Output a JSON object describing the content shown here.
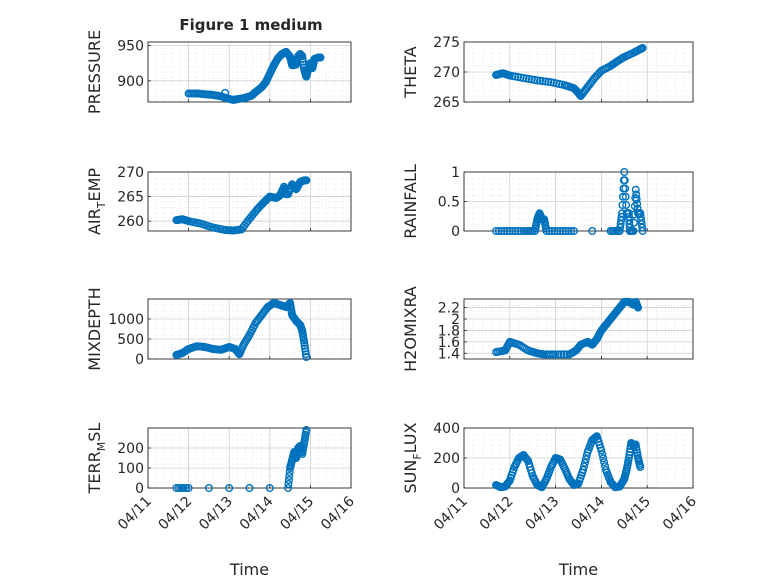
{
  "figure": {
    "title": "Figure 1 medium",
    "marker_color": "#0072BD"
  },
  "chart_data": [
    {
      "type": "scatter",
      "ylabel": "PRESSURE",
      "xlabel": "",
      "xlim": [
        "04/11",
        "04/16"
      ],
      "ylim": [
        870,
        955
      ],
      "yticks": [
        900,
        950
      ],
      "x_tick_labels": [
        "04/11",
        "04/12",
        "04/13",
        "04/14",
        "04/15",
        "04/16"
      ],
      "grid": "major+minor",
      "points": [
        [
          12.9,
          883
        ],
        [
          12.0,
          882
        ],
        [
          12.2,
          882
        ],
        [
          12.4,
          881
        ],
        [
          12.6,
          880
        ],
        [
          12.8,
          878
        ],
        [
          12.95,
          875
        ],
        [
          13.1,
          873
        ],
        [
          13.2,
          874
        ],
        [
          13.4,
          876
        ],
        [
          13.55,
          879
        ],
        [
          13.65,
          884
        ],
        [
          13.8,
          891
        ],
        [
          13.9,
          898
        ],
        [
          14.0,
          910
        ],
        [
          14.1,
          922
        ],
        [
          14.2,
          932
        ],
        [
          14.3,
          938
        ],
        [
          14.4,
          941
        ],
        [
          14.5,
          934
        ],
        [
          14.55,
          922
        ],
        [
          14.65,
          923
        ],
        [
          14.7,
          935
        ],
        [
          14.75,
          938
        ],
        [
          14.8,
          935
        ],
        [
          14.85,
          915
        ],
        [
          14.9,
          906
        ],
        [
          14.95,
          917
        ],
        [
          15.0,
          925
        ],
        [
          15.05,
          918
        ],
        [
          15.1,
          931
        ],
        [
          15.2,
          933
        ],
        [
          15.25,
          933
        ]
      ]
    },
    {
      "type": "scatter",
      "ylabel": "THETA",
      "xlabel": "",
      "xlim": [
        "04/11",
        "04/16"
      ],
      "ylim": [
        265,
        275
      ],
      "yticks": [
        265,
        270,
        275
      ],
      "x_tick_labels": [
        "04/11",
        "04/12",
        "04/13",
        "04/14",
        "04/15",
        "04/16"
      ],
      "grid": "major+minor",
      "points": [
        [
          11.7,
          269.5
        ],
        [
          11.85,
          269.8
        ],
        [
          12.0,
          269.4
        ],
        [
          12.3,
          269.0
        ],
        [
          12.6,
          268.6
        ],
        [
          12.9,
          268.3
        ],
        [
          13.2,
          267.8
        ],
        [
          13.4,
          267.3
        ],
        [
          13.5,
          266.5
        ],
        [
          13.55,
          266.0
        ],
        [
          13.7,
          267.5
        ],
        [
          13.85,
          269.0
        ],
        [
          14.0,
          270.2
        ],
        [
          14.2,
          271.0
        ],
        [
          14.35,
          271.8
        ],
        [
          14.5,
          272.5
        ],
        [
          14.7,
          273.2
        ],
        [
          14.85,
          273.8
        ],
        [
          14.9,
          274.0
        ]
      ]
    },
    {
      "type": "scatter",
      "ylabel": "AIR_TEMP",
      "xlabel": "",
      "xlim": [
        "04/11",
        "04/16"
      ],
      "ylim": [
        258,
        270
      ],
      "yticks": [
        260,
        265,
        270
      ],
      "x_tick_labels": [
        "04/11",
        "04/12",
        "04/13",
        "04/14",
        "04/15",
        "04/16"
      ],
      "grid": "major+minor",
      "points": [
        [
          11.7,
          260.2
        ],
        [
          11.85,
          260.4
        ],
        [
          12.0,
          260.0
        ],
        [
          12.3,
          259.5
        ],
        [
          12.6,
          258.7
        ],
        [
          12.9,
          258.2
        ],
        [
          13.1,
          258.1
        ],
        [
          13.3,
          258.3
        ],
        [
          13.5,
          260.5
        ],
        [
          13.7,
          262.5
        ],
        [
          13.85,
          263.8
        ],
        [
          14.0,
          265.0
        ],
        [
          14.15,
          264.7
        ],
        [
          14.25,
          265.2
        ],
        [
          14.35,
          267.0
        ],
        [
          14.4,
          265.5
        ],
        [
          14.45,
          265.5
        ],
        [
          14.55,
          267.5
        ],
        [
          14.65,
          266.5
        ],
        [
          14.75,
          268.0
        ],
        [
          14.85,
          268.3
        ],
        [
          14.9,
          268.3
        ]
      ]
    },
    {
      "type": "scatter",
      "ylabel": "RAINFALL",
      "xlabel": "",
      "xlim": [
        "04/11",
        "04/16"
      ],
      "ylim": [
        0,
        1
      ],
      "yticks": [
        0,
        0.5,
        1
      ],
      "x_tick_labels": [
        "04/11",
        "04/12",
        "04/13",
        "04/14",
        "04/15",
        "04/16"
      ],
      "grid": "major+minor",
      "points": [
        [
          11.7,
          0
        ],
        [
          12.0,
          0
        ],
        [
          12.3,
          0
        ],
        [
          12.55,
          0
        ],
        [
          12.6,
          0.2
        ],
        [
          12.65,
          0.3
        ],
        [
          12.7,
          0.2
        ],
        [
          12.75,
          0.2
        ],
        [
          12.8,
          0
        ],
        [
          13.1,
          0
        ],
        [
          13.4,
          0
        ],
        [
          13.8,
          0
        ],
        [
          14.2,
          0
        ],
        [
          14.4,
          0
        ],
        [
          14.45,
          0.3
        ],
        [
          14.5,
          1.0
        ],
        [
          14.55,
          0.3
        ],
        [
          14.6,
          0.3
        ],
        [
          14.62,
          0
        ],
        [
          14.7,
          0
        ],
        [
          14.75,
          0.7
        ],
        [
          14.8,
          0.3
        ],
        [
          14.85,
          0.3
        ],
        [
          14.9,
          0
        ]
      ]
    },
    {
      "type": "scatter",
      "ylabel": "MIXDEPTH",
      "xlabel": "",
      "xlim": [
        "04/11",
        "04/16"
      ],
      "ylim": [
        0,
        1500
      ],
      "yticks": [
        0,
        500,
        1000
      ],
      "x_tick_labels": [
        "04/11",
        "04/12",
        "04/13",
        "04/14",
        "04/15",
        "04/16"
      ],
      "grid": "major+minor",
      "points": [
        [
          11.7,
          100
        ],
        [
          11.85,
          150
        ],
        [
          12.0,
          250
        ],
        [
          12.2,
          320
        ],
        [
          12.4,
          300
        ],
        [
          12.6,
          250
        ],
        [
          12.8,
          230
        ],
        [
          13.0,
          300
        ],
        [
          13.15,
          250
        ],
        [
          13.25,
          120
        ],
        [
          13.35,
          350
        ],
        [
          13.5,
          600
        ],
        [
          13.65,
          900
        ],
        [
          13.8,
          1100
        ],
        [
          13.95,
          1300
        ],
        [
          14.1,
          1400
        ],
        [
          14.25,
          1350
        ],
        [
          14.4,
          1300
        ],
        [
          14.5,
          1400
        ],
        [
          14.55,
          1100
        ],
        [
          14.65,
          950
        ],
        [
          14.75,
          850
        ],
        [
          14.8,
          700
        ],
        [
          14.85,
          400
        ],
        [
          14.9,
          50
        ]
      ]
    },
    {
      "type": "scatter",
      "ylabel": "H2OMIXRA",
      "xlabel": "",
      "xlim": [
        "04/11",
        "04/16"
      ],
      "ylim": [
        1.3,
        2.35
      ],
      "yticks": [
        1.4,
        1.6,
        1.8,
        2.0,
        2.2
      ],
      "y_tick_labels": [
        "1.4",
        "1.6",
        "1.8",
        "2",
        "2.2"
      ],
      "x_tick_labels": [
        "04/11",
        "04/12",
        "04/13",
        "04/14",
        "04/15",
        "04/16"
      ],
      "grid": "major+minor",
      "points": [
        [
          11.7,
          1.42
        ],
        [
          11.9,
          1.45
        ],
        [
          12.0,
          1.6
        ],
        [
          12.2,
          1.55
        ],
        [
          12.4,
          1.45
        ],
        [
          12.6,
          1.4
        ],
        [
          12.75,
          1.38
        ],
        [
          13.0,
          1.38
        ],
        [
          13.3,
          1.38
        ],
        [
          13.45,
          1.45
        ],
        [
          13.55,
          1.55
        ],
        [
          13.7,
          1.6
        ],
        [
          13.8,
          1.55
        ],
        [
          13.9,
          1.65
        ],
        [
          14.0,
          1.8
        ],
        [
          14.1,
          1.9
        ],
        [
          14.2,
          2.0
        ],
        [
          14.3,
          2.1
        ],
        [
          14.4,
          2.2
        ],
        [
          14.5,
          2.3
        ],
        [
          14.6,
          2.3
        ],
        [
          14.7,
          2.25
        ],
        [
          14.75,
          2.3
        ],
        [
          14.8,
          2.2
        ]
      ]
    },
    {
      "type": "scatter",
      "ylabel": "TERR_MSL",
      "xlabel": "Time",
      "xlim": [
        "04/11",
        "04/16"
      ],
      "ylim": [
        0,
        300
      ],
      "yticks": [
        0,
        100,
        200
      ],
      "x_tick_labels": [
        "04/11",
        "04/12",
        "04/13",
        "04/14",
        "04/15",
        "04/16"
      ],
      "grid": "major+minor",
      "points": [
        [
          11.7,
          0
        ],
        [
          12.0,
          0
        ],
        [
          12.5,
          0
        ],
        [
          13.0,
          0
        ],
        [
          13.5,
          0
        ],
        [
          14.0,
          0
        ],
        [
          14.45,
          0
        ],
        [
          14.5,
          100
        ],
        [
          14.55,
          140
        ],
        [
          14.6,
          180
        ],
        [
          14.65,
          150
        ],
        [
          14.7,
          200
        ],
        [
          14.75,
          210
        ],
        [
          14.8,
          170
        ],
        [
          14.85,
          230
        ],
        [
          14.9,
          290
        ]
      ]
    },
    {
      "type": "scatter",
      "ylabel": "SUN_FLUX",
      "xlabel": "Time",
      "xlim": [
        "04/11",
        "04/16"
      ],
      "ylim": [
        0,
        400
      ],
      "yticks": [
        0,
        200,
        400
      ],
      "x_tick_labels": [
        "04/11",
        "04/12",
        "04/13",
        "04/14",
        "04/15",
        "04/16"
      ],
      "grid": "major+minor",
      "points": [
        [
          11.7,
          20
        ],
        [
          11.8,
          5
        ],
        [
          11.9,
          10
        ],
        [
          12.0,
          50
        ],
        [
          12.1,
          140
        ],
        [
          12.2,
          200
        ],
        [
          12.3,
          220
        ],
        [
          12.4,
          180
        ],
        [
          12.5,
          80
        ],
        [
          12.6,
          20
        ],
        [
          12.7,
          5
        ],
        [
          12.8,
          60
        ],
        [
          12.9,
          140
        ],
        [
          13.0,
          200
        ],
        [
          13.1,
          190
        ],
        [
          13.2,
          130
        ],
        [
          13.3,
          60
        ],
        [
          13.4,
          20
        ],
        [
          13.5,
          30
        ],
        [
          13.6,
          120
        ],
        [
          13.7,
          240
        ],
        [
          13.8,
          320
        ],
        [
          13.9,
          345
        ],
        [
          14.0,
          250
        ],
        [
          14.1,
          120
        ],
        [
          14.2,
          40
        ],
        [
          14.3,
          5
        ],
        [
          14.4,
          10
        ],
        [
          14.5,
          60
        ],
        [
          14.55,
          120
        ],
        [
          14.6,
          200
        ],
        [
          14.65,
          300
        ],
        [
          14.7,
          280
        ],
        [
          14.75,
          290
        ],
        [
          14.8,
          200
        ],
        [
          14.85,
          140
        ]
      ]
    }
  ]
}
